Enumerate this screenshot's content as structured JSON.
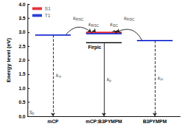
{
  "chart_data": {
    "type": "energy_level",
    "y_label": "Energy level (eV)",
    "ylim": [
      0,
      4
    ],
    "yticks": [
      {
        "value": 0,
        "label": "0.0"
      },
      {
        "value": 0.5,
        "label": "0.5"
      },
      {
        "value": 1,
        "label": "1.0"
      },
      {
        "value": 1.5,
        "label": "1.5"
      },
      {
        "value": 2,
        "label": "2.0"
      },
      {
        "value": 2.5,
        "label": "2.5"
      },
      {
        "value": 3,
        "label": "3.0"
      },
      {
        "value": 3.5,
        "label": "3.5"
      },
      {
        "value": 4,
        "label": "4.0"
      }
    ],
    "categories": [
      "mCP",
      "mCP:B3PYMPM",
      "B3PYMPM"
    ],
    "ground_label": "S0",
    "legend": "upper left",
    "series": [
      {
        "name": "S1",
        "color": "#e8313a",
        "levels": [
          {
            "category": "mCP:B3PYMPM",
            "energy": 3.0
          }
        ]
      },
      {
        "name": "T1",
        "color": "#2b3fd8",
        "levels": [
          {
            "category": "mCP",
            "energy": 2.9
          },
          {
            "category": "mCP:B3PYMPM",
            "energy": 2.95
          },
          {
            "category": "B3PYMPM",
            "energy": 2.7
          }
        ]
      }
    ],
    "dopant": {
      "label": "Firpic",
      "color": "#444444",
      "category": "mCP:B3PYMPM",
      "energy": 2.62
    },
    "transitions": [
      {
        "text": "k",
        "subscript": "RISC",
        "from": {
          "category": "mCP",
          "energy": 2.9
        },
        "to": {
          "category": "mCP:B3PYMPM",
          "energy": 3.0
        }
      },
      {
        "text": "k",
        "subscript": "RISC",
        "from": {
          "category": "B3PYMPM",
          "energy": 2.7
        },
        "to": {
          "category": "mCP:B3PYMPM",
          "energy": 3.0
        }
      },
      {
        "text": "k",
        "subscript": "RISC",
        "from": {
          "category": "mCP:B3PYMPM",
          "energy": 2.95
        },
        "to": {
          "category": "mCP:B3PYMPM",
          "energy": 3.0
        }
      },
      {
        "text": "k",
        "subscript": "ISC",
        "from": {
          "category": "mCP:B3PYMPM",
          "energy": 3.0
        },
        "to": {
          "category": "mCP:B3PYMPM",
          "energy": 2.95
        }
      }
    ],
    "decays": [
      {
        "text": "k",
        "subscript": "nr",
        "category": "mCP",
        "from_energy": 2.9,
        "to_energy": 0,
        "line_style": "dashed"
      },
      {
        "text": "k",
        "subscript": "p",
        "category": "mCP:B3PYMPM",
        "from_energy": 2.62,
        "to_energy": 0,
        "line_style": "solid"
      },
      {
        "text": "k",
        "subscript": "nr",
        "category": "B3PYMPM",
        "from_energy": 2.7,
        "to_energy": 0,
        "line_style": "dashed"
      }
    ]
  }
}
